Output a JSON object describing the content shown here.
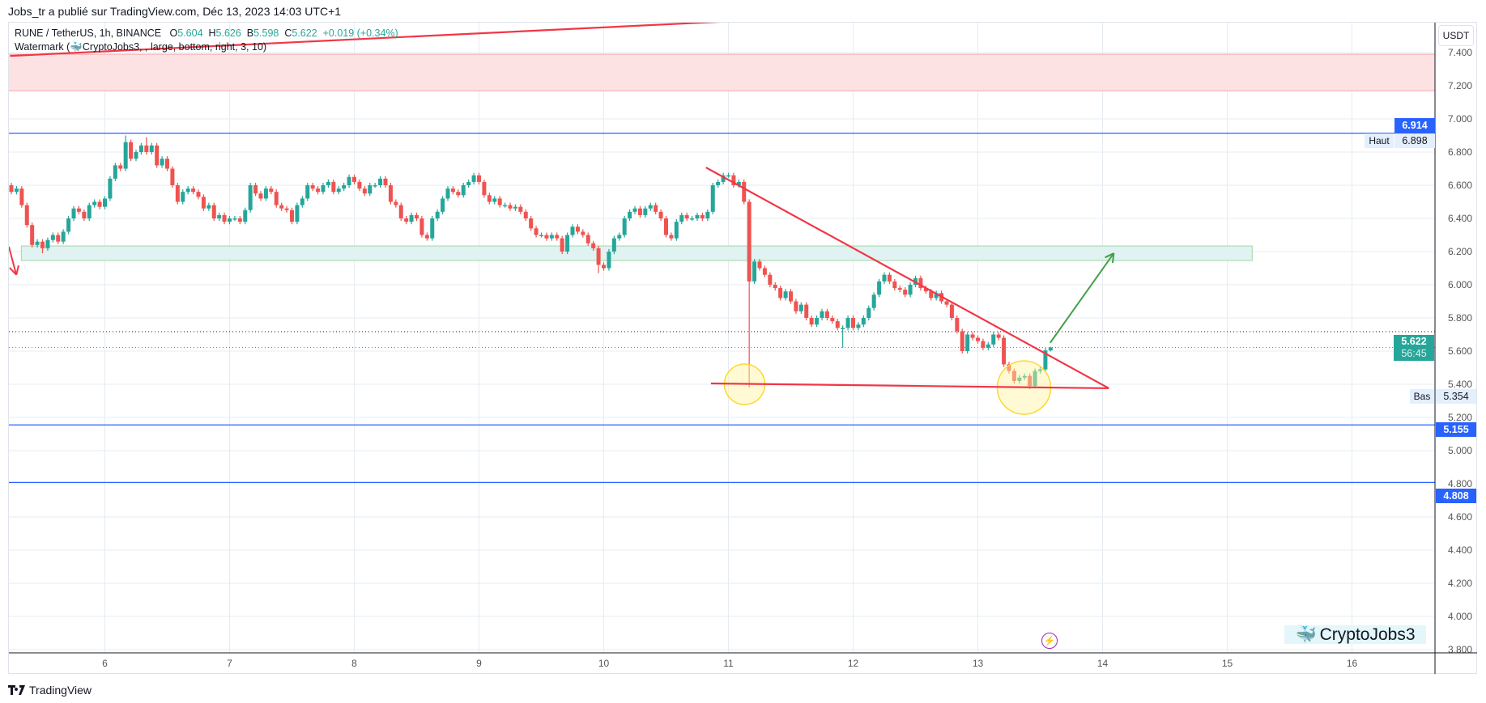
{
  "header": {
    "published": "Jobs_tr a publié sur TradingView.com, Déc 13, 2023 14:03 UTC+1"
  },
  "legend": {
    "symbol": "RUNE / TetherUS, 1h, BINANCE",
    "o_label": "O",
    "o": "5.604",
    "h_label": "H",
    "h": "5.626",
    "l_label": "B",
    "l": "5.598",
    "c_label": "C",
    "c": "5.622",
    "change": "+0.019 (+0.34%)",
    "watermark_prefix": "Watermark (",
    "watermark_rest": "CryptoJobs3, , large, bottom, right, 3, 10)"
  },
  "axis": {
    "currency": "USDT",
    "price_ticks": [
      "3.800",
      "4.000",
      "4.200",
      "4.400",
      "4.600",
      "4.800",
      "5.000",
      "5.200",
      "5.400",
      "5.600",
      "5.800",
      "6.000",
      "6.200",
      "6.400",
      "6.600",
      "6.800",
      "7.000",
      "7.200",
      "7.400"
    ],
    "time_ticks": [
      "6",
      "7",
      "8",
      "9",
      "10",
      "11",
      "12",
      "13",
      "14",
      "15",
      "16"
    ]
  },
  "price_labels": {
    "level_top": "6.914",
    "haut_label": "Haut",
    "haut_value": "6.898",
    "last": "5.622",
    "countdown": "56:45",
    "bas_label": "Bas",
    "bas_value": "5.354",
    "level_1": "5.155",
    "level_2": "4.808"
  },
  "watermark_box": {
    "text": "CryptoJobs3",
    "icon": "whale-icon"
  },
  "footer": {
    "brand": "TradingView",
    "icon": "tradingview-logo-icon"
  },
  "colors": {
    "up": "#26a69a",
    "down": "#ef5350",
    "level": "#2962ff",
    "trend": "#f23645",
    "arrow_up": "#43a047",
    "highlight": "#fff59d",
    "zone_resistance": "#fde2e4",
    "zone_support": "#e0f2f1"
  },
  "chart_data": {
    "type": "candlestick",
    "interval": "1h",
    "first_candle": "Dec 5 06:00",
    "first_open": 6.6,
    "closes": [
      6.56,
      6.58,
      6.48,
      6.36,
      6.24,
      6.26,
      6.22,
      6.27,
      6.3,
      6.26,
      6.32,
      6.4,
      6.46,
      6.44,
      6.4,
      6.48,
      6.5,
      6.47,
      6.52,
      6.64,
      6.72,
      6.7,
      6.86,
      6.76,
      6.8,
      6.84,
      6.8,
      6.84,
      6.72,
      6.76,
      6.7,
      6.6,
      6.5,
      6.56,
      6.58,
      6.56,
      6.53,
      6.46,
      6.48,
      6.4,
      6.42,
      6.38,
      6.4,
      6.4,
      6.38,
      6.45,
      6.6,
      6.55,
      6.52,
      6.58,
      6.56,
      6.48,
      6.46,
      6.45,
      6.38,
      6.48,
      6.52,
      6.6,
      6.58,
      6.56,
      6.6,
      6.62,
      6.56,
      6.58,
      6.6,
      6.65,
      6.62,
      6.58,
      6.55,
      6.6,
      6.6,
      6.64,
      6.6,
      6.5,
      6.48,
      6.4,
      6.38,
      6.42,
      6.4,
      6.3,
      6.28,
      6.4,
      6.44,
      6.52,
      6.58,
      6.56,
      6.54,
      6.6,
      6.62,
      6.66,
      6.62,
      6.54,
      6.5,
      6.52,
      6.48,
      6.48,
      6.46,
      6.47,
      6.44,
      6.4,
      6.34,
      6.3,
      6.3,
      6.28,
      6.3,
      6.28,
      6.2,
      6.3,
      6.35,
      6.32,
      6.3,
      6.25,
      6.22,
      6.12,
      6.1,
      6.2,
      6.28,
      6.3,
      6.4,
      6.44,
      6.46,
      6.42,
      6.46,
      6.48,
      6.44,
      6.4,
      6.3,
      6.28,
      6.38,
      6.42,
      6.4,
      6.4,
      6.42,
      6.4,
      6.44,
      6.6,
      6.62,
      6.66,
      6.66,
      6.6,
      6.62,
      6.5,
      6.02,
      6.14,
      6.1,
      6.06,
      6.0,
      5.98,
      5.92,
      5.96,
      5.9,
      5.84,
      5.88,
      5.8,
      5.76,
      5.8,
      5.84,
      5.8,
      5.78,
      5.74,
      5.74,
      5.8,
      5.74,
      5.76,
      5.8,
      5.86,
      5.94,
      6.02,
      6.06,
      6.02,
      5.98,
      5.97,
      5.94,
      6.0,
      6.04,
      5.98,
      5.96,
      5.92,
      5.95,
      5.9,
      5.88,
      5.8,
      5.72,
      5.6,
      5.7,
      5.68,
      5.66,
      5.62,
      5.64,
      5.7,
      5.68,
      5.52,
      5.48,
      5.42,
      5.44,
      5.45,
      5.39,
      5.48,
      5.49,
      5.604,
      5.622
    ],
    "wick_extremes": {
      "highs": {
        "22": 6.9,
        "26": 6.89,
        "200": 5.626
      },
      "lows": {
        "6": 6.19,
        "113": 6.07,
        "142": 5.38,
        "160": 5.62,
        "196": 5.37,
        "200": 5.598
      }
    },
    "y_range": [
      3.8,
      7.45
    ],
    "x_range_days": [
      5.2,
      16.7
    ],
    "grid": true,
    "horizontal_levels": [
      6.914,
      5.155,
      4.808
    ],
    "dotted_levels": [
      {
        "price": 5.717,
        "color": "#131722"
      },
      {
        "price": 5.622,
        "color": "#26a69a"
      }
    ],
    "zones": [
      {
        "name": "resistance",
        "from_day": 5.2,
        "to_day": 16.7,
        "low": 7.17,
        "high": 7.39
      },
      {
        "name": "support",
        "from_day": 5.33,
        "to_day": 15.2,
        "low": 6.146,
        "high": 6.234
      }
    ],
    "trendlines": [
      {
        "from": [
          5.24,
          7.38
        ],
        "to": [
          11.05,
          7.59
        ]
      },
      {
        "from": [
          10.82,
          6.707
        ],
        "to": [
          14.05,
          5.376
        ]
      },
      {
        "from": [
          10.86,
          5.405
        ],
        "to": [
          14.05,
          5.376
        ]
      }
    ],
    "highlight_circles": [
      {
        "day": 11.13,
        "price": 5.4
      },
      {
        "day": 13.37,
        "price": 5.38
      }
    ],
    "projection_arrow": {
      "from": [
        13.58,
        5.65
      ],
      "to": [
        14.09,
        6.19
      ]
    },
    "down_arrow": {
      "from": [
        5.23,
        6.23
      ],
      "to": [
        5.29,
        6.06
      ]
    }
  }
}
